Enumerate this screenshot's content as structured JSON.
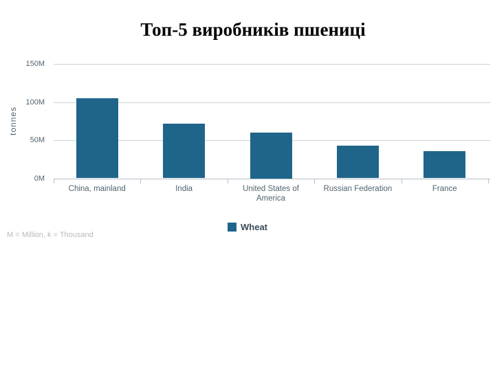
{
  "title": "Топ-5 виробників пшениці",
  "y_axis_title": "tonnes",
  "legend": {
    "label": "Wheat"
  },
  "footnote": "M = Million, k = Thousand",
  "colors": {
    "bar": "#1f6589",
    "grid": "#cdd2d7",
    "axis": "#b4bec8",
    "tick_label": "#50636f",
    "legend_text": "#3b4a56",
    "footnote_text": "#b9b9b9",
    "title_text": "#000000"
  },
  "chart_data": {
    "type": "bar",
    "title": "Топ-5 виробників пшениці",
    "categories": [
      "China, mainland",
      "India",
      "United States of America",
      "Russian Federation",
      "France"
    ],
    "series": [
      {
        "name": "Wheat",
        "color": "#1f6589",
        "values": [
          105,
          72,
          60,
          43,
          36
        ]
      }
    ],
    "values_unit": "million tonnes",
    "xlabel": "",
    "ylabel": "tonnes",
    "ylim": [
      0,
      150
    ],
    "yticks": [
      {
        "value": 0,
        "label": "0M"
      },
      {
        "value": 50,
        "label": "50M"
      },
      {
        "value": 100,
        "label": "100M"
      },
      {
        "value": 150,
        "label": "150M"
      }
    ],
    "grid": true,
    "legend_position": "bottom",
    "footnote": "M = Million, k = Thousand"
  }
}
